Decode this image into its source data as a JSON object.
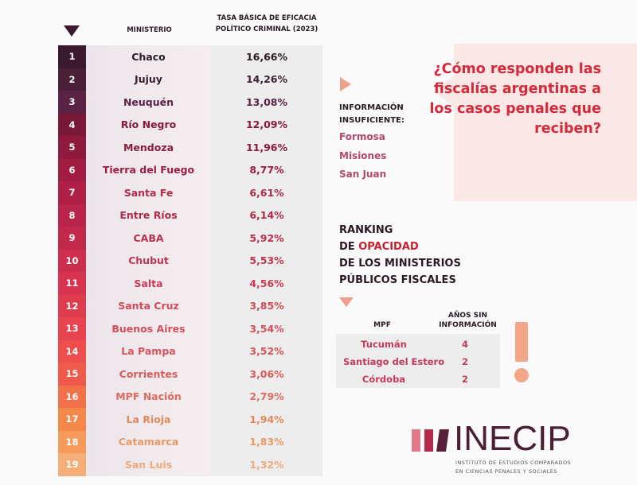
{
  "chart_data": {
    "type": "table",
    "columns": [
      "MINISTERIO",
      "TASA BÁSICA DE EFICACIA POLÍTICO CRIMINAL (2023)"
    ],
    "rows": [
      {
        "rank": "1",
        "name": "Chaco",
        "value": "16,66%",
        "rank_color": "#3b1a2f",
        "text_color": "#2a1a25"
      },
      {
        "rank": "2",
        "name": "Jujuy",
        "value": "14,26%",
        "rank_color": "#4a1f38",
        "text_color": "#3a1f30"
      },
      {
        "rank": "3",
        "name": "Neuquén",
        "value": "13,08%",
        "rank_color": "#5a2244",
        "text_color": "#5a2244"
      },
      {
        "rank": "4",
        "name": "Río Negro",
        "value": "12,09%",
        "rank_color": "#7a1838",
        "text_color": "#8a1a3c"
      },
      {
        "rank": "5",
        "name": "Mendoza",
        "value": "11,96%",
        "rank_color": "#8e1a3e",
        "text_color": "#8e1a3e"
      },
      {
        "rank": "6",
        "name": "Tierra del Fuego",
        "value": "8,77%",
        "rank_color": "#a01c42",
        "text_color": "#a01c42"
      },
      {
        "rank": "7",
        "name": "Santa Fe",
        "value": "6,61%",
        "rank_color": "#b02046",
        "text_color": "#b02a4a"
      },
      {
        "rank": "8",
        "name": "Entre Ríos",
        "value": "6,14%",
        "rank_color": "#b8244a",
        "text_color": "#b02a4a"
      },
      {
        "rank": "9",
        "name": "CABA",
        "value": "5,92%",
        "rank_color": "#c2284c",
        "text_color": "#b8304c"
      },
      {
        "rank": "10",
        "name": "Chubut",
        "value": "5,53%",
        "rank_color": "#cc2e4e",
        "text_color": "#c03650"
      },
      {
        "rank": "11",
        "name": "Salta",
        "value": "4,56%",
        "rank_color": "#d8344f",
        "text_color": "#cc3a54"
      },
      {
        "rank": "12",
        "name": "Santa Cruz",
        "value": "3,85%",
        "rank_color": "#e03c50",
        "text_color": "#d04a5a"
      },
      {
        "rank": "13",
        "name": "Buenos Aires",
        "value": "3,54%",
        "rank_color": "#e84450",
        "text_color": "#d44e5c"
      },
      {
        "rank": "14",
        "name": "La Pampa",
        "value": "3,52%",
        "rank_color": "#ee4e4e",
        "text_color": "#d8545c"
      },
      {
        "rank": "15",
        "name": "Corrientes",
        "value": "3,06%",
        "rank_color": "#f05a4c",
        "text_color": "#da5c5c"
      },
      {
        "rank": "16",
        "name": "MPF Nación",
        "value": "2,79%",
        "rank_color": "#f2704a",
        "text_color": "#de6a60"
      },
      {
        "rank": "17",
        "name": "La Rioja",
        "value": "1,94%",
        "rank_color": "#f4884a",
        "text_color": "#e4885c"
      },
      {
        "rank": "18",
        "name": "Catamarca",
        "value": "1,83%",
        "rank_color": "#f59a5a",
        "text_color": "#e89a66"
      },
      {
        "rank": "19",
        "name": "San Luis",
        "value": "1,32%",
        "rank_color": "#f5ae78",
        "text_color": "#eeaa7a"
      }
    ]
  },
  "headers": {
    "ministerio": "MINISTERIO",
    "tasa_line1": "TASA BÁSICA DE EFICACIA",
    "tasa_line2": "POLÍTICO CRIMINAL (2023)"
  },
  "question": "¿Cómo responden las fiscalías argentinas a los casos penales que reciben?",
  "insufficient": {
    "title_line1": "INFORMACIÓN",
    "title_line2": "INSUFICIENTE:",
    "items": [
      "Formosa",
      "Misiones",
      "San Juan"
    ]
  },
  "opacity_ranking": {
    "line1": "RANKING",
    "line2_prefix": "DE ",
    "line2_highlight": "OPACIDAD",
    "line3": "DE LOS MINISTERIOS",
    "line4": "PÚBLICOS FISCALES",
    "col_mpf": "MPF",
    "col_years_line1": "AÑOS SIN",
    "col_years_line2": "INFORMACIÓN",
    "rows": [
      {
        "name": "Tucumán",
        "years": "4"
      },
      {
        "name": "Santiago del Estero",
        "years": "2"
      },
      {
        "name": "Córdoba",
        "years": "2"
      }
    ]
  },
  "logo": {
    "name": "INECIP",
    "sub_line1": "INSTITUTO DE ESTUDIOS COMPARADOS",
    "sub_line2": "EN CIENCIAS PENALES Y SOCIALES"
  },
  "colors": {
    "accent_red": "#c4202e",
    "question_bg": "#fae8e6",
    "accent_peach": "#f4a688"
  }
}
